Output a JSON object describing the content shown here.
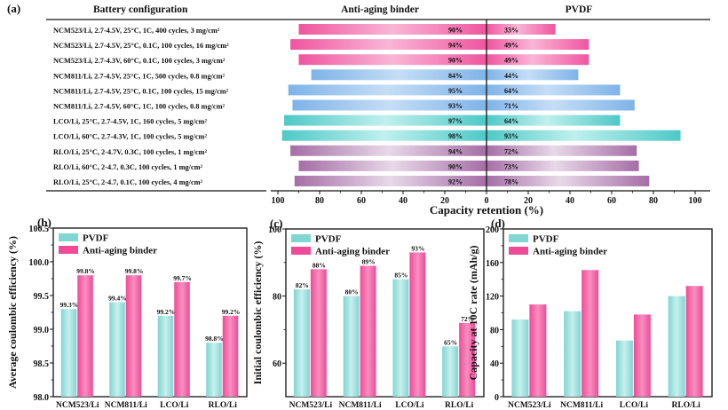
{
  "colors": {
    "pink": "#f0559f",
    "pink_light": "#f9b6d6",
    "blue": "#7fb3e8",
    "blue_light": "#c5def7",
    "teal": "#4ec9c7",
    "teal_light": "#bff0ee",
    "purple": "#a56ea6",
    "purple_light": "#e8d8e9",
    "pvdf_bar": "#7fd6d3",
    "binder_bar": "#f04b98"
  },
  "chart_data": [
    {
      "panel": "(a)",
      "type": "bar",
      "orientation": "horizontal-diverging",
      "column_headers": {
        "config": "Battery configuration",
        "left": "Anti-aging binder",
        "right": "PVDF"
      },
      "xlabel": "Capacity retention (%)",
      "xlim": [
        0,
        100
      ],
      "xticks": [
        100,
        80,
        60,
        40,
        20,
        0,
        20,
        40,
        60,
        80,
        100
      ],
      "categories": [
        "NCM523/Li, 2.7-4.5V, 25°C, 1C, 400 cycles, 3 mg/cm²",
        "NCM523/Li, 2.7-4.5V, 25°C, 0.1C, 100 cycles, 16 mg/cm²",
        "NCM523/Li, 2.7-4.3V, 60°C, 0.1C, 100 cycles, 3 mg/cm²",
        "NCM811/Li, 2.7-4.5V, 25°C, 1C, 500 cycles, 0.8 mg/cm²",
        "NCM811/Li, 2.7-4.5V, 25°C, 0.1C, 100 cycles, 15 mg/cm²",
        "NCM811/Li, 2.7-4.5V, 60°C, 1C, 100 cycles, 0.8 mg/cm²",
        "LCO/Li, 25°C, 2.7-4.5V, 1C, 160 cycles, 5 mg/cm²",
        "LCO/Li, 60°C, 2.7-4.3V, 1C, 100 cycles, 5 mg/cm²",
        "RLO/Li, 25°C, 2-4.7V, 0.3C, 100 cycles, 1 mg/cm²",
        "RLO/Li, 60°C, 2-4.7, 0.3C, 100 cycles, 1 mg/cm²",
        "RLO/Li, 25°C, 2-4.7, 0.1C, 100 cycles, 4 mg/cm²"
      ],
      "group": [
        "pink",
        "pink",
        "pink",
        "blue",
        "blue",
        "blue",
        "teal",
        "teal",
        "purple",
        "purple",
        "purple"
      ],
      "series": [
        {
          "name": "Anti-aging binder",
          "values": [
            90,
            94,
            90,
            84,
            95,
            93,
            97,
            98,
            94,
            90,
            92
          ],
          "labels": [
            "90%",
            "94%",
            "90%",
            "84%",
            "95%",
            "93%",
            "97%",
            "98%",
            "94%",
            "90%",
            "92%"
          ]
        },
        {
          "name": "PVDF",
          "values": [
            33,
            49,
            49,
            44,
            64,
            71,
            64,
            93,
            72,
            73,
            78
          ],
          "labels": [
            "33%",
            "49%",
            "49%",
            "44%",
            "64%",
            "71%",
            "64%",
            "93%",
            "72%",
            "73%",
            "78%"
          ]
        }
      ]
    },
    {
      "panel": "(b)",
      "type": "bar",
      "categories": [
        "NCM523/Li",
        "NCM811/Li",
        "LCO/Li",
        "RLO/Li"
      ],
      "series": [
        {
          "name": "PVDF",
          "values": [
            99.3,
            99.4,
            99.2,
            98.8
          ],
          "labels": [
            "99.3%",
            "99.4%",
            "99.2%",
            "98.8%"
          ]
        },
        {
          "name": "Anti-aging binder",
          "values": [
            99.8,
            99.8,
            99.7,
            99.2
          ],
          "labels": [
            "99.8%",
            "99.8%",
            "99.7%",
            "99.2%"
          ]
        }
      ],
      "ylabel": "Average coulombic efficiency (%)",
      "ylim": [
        98.0,
        100.5
      ],
      "yticks": [
        "98.0",
        "98.5",
        "99.0",
        "99.5",
        "100.0",
        "100.5"
      ],
      "legend": "top-left"
    },
    {
      "panel": "(c)",
      "type": "bar",
      "categories": [
        "NCM523/Li",
        "NCM811/Li",
        "LCO/Li",
        "RLO/Li"
      ],
      "series": [
        {
          "name": "PVDF",
          "values": [
            82,
            80,
            85,
            65
          ],
          "labels": [
            "82%",
            "80%",
            "85%",
            "65%"
          ]
        },
        {
          "name": "Anti-aging binder",
          "values": [
            88,
            89,
            93,
            72
          ],
          "labels": [
            "88%",
            "89%",
            "93%",
            "72%"
          ]
        }
      ],
      "ylabel": "Initial coulombic efficiency (%)",
      "ylim": [
        50,
        100
      ],
      "yticks": [
        "60",
        "80",
        "100"
      ],
      "legend": "top-left"
    },
    {
      "panel": "(d)",
      "type": "bar",
      "categories": [
        "NCM523/Li",
        "NCM811/Li",
        "LCO/Li",
        "RLO/Li"
      ],
      "series": [
        {
          "name": "PVDF",
          "values": [
            92,
            102,
            67,
            120
          ]
        },
        {
          "name": "Anti-aging binder",
          "values": [
            110,
            151,
            98,
            132
          ]
        }
      ],
      "ylabel": "Capacity at 10C rate (mAh/g)",
      "ylim": [
        0,
        200
      ],
      "yticks": [
        "0",
        "40",
        "80",
        "120",
        "160",
        "200"
      ],
      "legend": "top-left"
    }
  ]
}
